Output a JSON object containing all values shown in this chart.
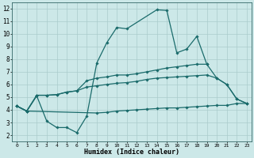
{
  "series": {
    "curve1_x": [
      0,
      1,
      2,
      3,
      4,
      5,
      6,
      7,
      8,
      9,
      10,
      11,
      14,
      15,
      16,
      17,
      18,
      19
    ],
    "curve1_y": [
      4.3,
      3.9,
      5.1,
      3.1,
      2.6,
      2.6,
      2.2,
      3.5,
      7.7,
      9.3,
      10.5,
      10.4,
      11.9,
      11.85,
      8.5,
      8.8,
      9.8,
      7.6
    ],
    "curve2_x": [
      0,
      1,
      2,
      3,
      4,
      5,
      6,
      7,
      8,
      9,
      10,
      11,
      12,
      13,
      14,
      15,
      16,
      17,
      18,
      19,
      20,
      21,
      22,
      23
    ],
    "curve2_y": [
      4.3,
      3.9,
      5.15,
      5.15,
      5.2,
      5.4,
      5.5,
      6.3,
      6.5,
      6.6,
      6.75,
      6.75,
      6.85,
      7.0,
      7.15,
      7.3,
      7.4,
      7.5,
      7.6,
      7.6,
      6.5,
      6.0,
      4.85,
      4.5
    ],
    "curve3_x": [
      0,
      1,
      2,
      3,
      4,
      5,
      6,
      7,
      8,
      9,
      10,
      11,
      12,
      13,
      14,
      15,
      16,
      17,
      18,
      19,
      20,
      21,
      22,
      23
    ],
    "curve3_y": [
      4.3,
      3.9,
      5.15,
      5.15,
      5.2,
      5.4,
      5.5,
      5.8,
      5.9,
      6.0,
      6.1,
      6.15,
      6.25,
      6.4,
      6.5,
      6.55,
      6.6,
      6.65,
      6.7,
      6.75,
      6.5,
      6.0,
      4.85,
      4.5
    ],
    "curve4_x": [
      0,
      1,
      8,
      9,
      10,
      11,
      12,
      13,
      14,
      15,
      16,
      17,
      18,
      19,
      20,
      21,
      22,
      23
    ],
    "curve4_y": [
      4.3,
      3.9,
      3.75,
      3.8,
      3.9,
      3.95,
      4.0,
      4.05,
      4.1,
      4.15,
      4.15,
      4.2,
      4.25,
      4.3,
      4.35,
      4.35,
      4.5,
      4.5
    ]
  },
  "bg_color": "#cce8e8",
  "line_color": "#1a6b6b",
  "grid_color": "#aacccc",
  "xlabel": "Humidex (Indice chaleur)",
  "xlim": [
    -0.5,
    23.5
  ],
  "ylim": [
    1.5,
    12.5
  ],
  "yticks": [
    2,
    3,
    4,
    5,
    6,
    7,
    8,
    9,
    10,
    11,
    12
  ],
  "xticks": [
    0,
    1,
    2,
    3,
    4,
    5,
    6,
    7,
    8,
    9,
    10,
    11,
    12,
    13,
    14,
    15,
    16,
    17,
    18,
    19,
    20,
    21,
    22,
    23
  ]
}
